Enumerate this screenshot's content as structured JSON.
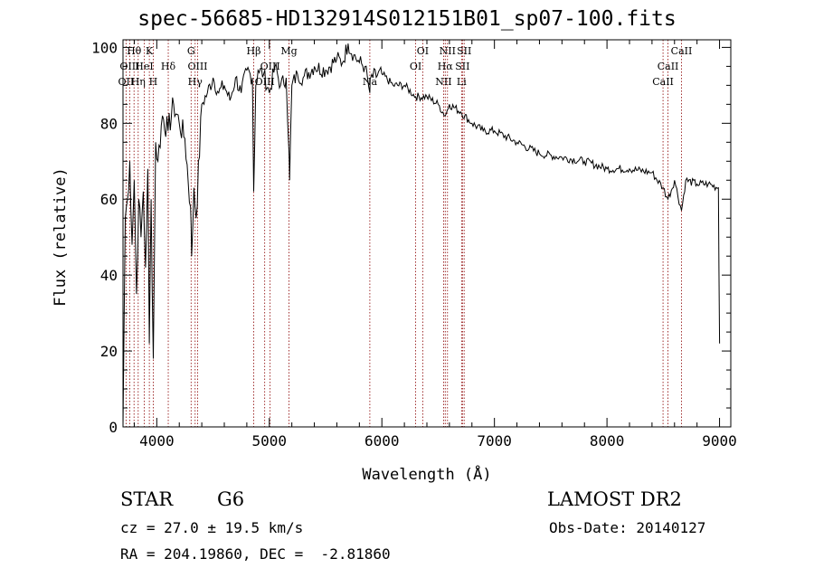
{
  "title": "spec-56685-HD132914S012151B01_sp07-100.fits",
  "info": {
    "class": "STAR",
    "subclass": "G6",
    "survey": "LAMOST DR2",
    "cz": "cz = 27.0 ± 19.5 km/s",
    "obs_date": "Obs-Date: 20140127",
    "radec": "RA = 204.19860, DEC =  -2.81860"
  },
  "chart_data": {
    "type": "line",
    "xlabel": "Wavelength (Å)",
    "ylabel": "Flux (relative)",
    "xlim": [
      3700,
      9100
    ],
    "ylim": [
      0,
      102
    ],
    "xticks": [
      4000,
      5000,
      6000,
      7000,
      8000,
      9000
    ],
    "yticks": [
      0,
      20,
      40,
      60,
      80,
      100
    ],
    "x_minor_step": 200,
    "y_minor_step": 5,
    "line_color": "#000000",
    "marker_color": "#8b0000",
    "spectral_lines": [
      {
        "label": "OII",
        "wavelength": 3727,
        "row": 2
      },
      {
        "label": "Hθ",
        "wavelength": 3798,
        "row": 0
      },
      {
        "label": "OIII",
        "wavelength": 3760,
        "row": 1
      },
      {
        "label": "Hη",
        "wavelength": 3835,
        "row": 2
      },
      {
        "label": "HeI",
        "wavelength": 3889,
        "row": 1
      },
      {
        "label": "K",
        "wavelength": 3934,
        "row": 0
      },
      {
        "label": "H",
        "wavelength": 3969,
        "row": 2
      },
      {
        "label": "Hδ",
        "wavelength": 4102,
        "row": 1
      },
      {
        "label": "G",
        "wavelength": 4305,
        "row": 0
      },
      {
        "label": "Hγ",
        "wavelength": 4341,
        "row": 2
      },
      {
        "label": "OIII",
        "wavelength": 4363,
        "row": 1
      },
      {
        "label": "Hβ",
        "wavelength": 4861,
        "row": 0
      },
      {
        "label": "OIII",
        "wavelength": 4959,
        "row": 2
      },
      {
        "label": "OIII",
        "wavelength": 5007,
        "row": 1
      },
      {
        "label": "Mg",
        "wavelength": 5175,
        "row": 0
      },
      {
        "label": "Na",
        "wavelength": 5893,
        "row": 2
      },
      {
        "label": "OI",
        "wavelength": 6300,
        "row": 1
      },
      {
        "label": "OI",
        "wavelength": 6363,
        "row": 0
      },
      {
        "label": "NII",
        "wavelength": 6548,
        "row": 2
      },
      {
        "label": "Hα",
        "wavelength": 6563,
        "row": 1
      },
      {
        "label": "NII",
        "wavelength": 6583,
        "row": 0
      },
      {
        "label": "Li",
        "wavelength": 6708,
        "row": 2
      },
      {
        "label": "SII",
        "wavelength": 6716,
        "row": 1
      },
      {
        "label": "SII",
        "wavelength": 6731,
        "row": 0
      },
      {
        "label": "CaII",
        "wavelength": 8498,
        "row": 2
      },
      {
        "label": "CaII",
        "wavelength": 8542,
        "row": 1
      },
      {
        "label": "CaII",
        "wavelength": 8662,
        "row": 0
      }
    ],
    "series": [
      {
        "x": [
          3700,
          3720,
          3740,
          3760,
          3780,
          3800,
          3820,
          3840,
          3860,
          3880,
          3900,
          3920,
          3934,
          3950,
          3969,
          3990,
          4010,
          4050,
          4100,
          4150,
          4200,
          4250,
          4300,
          4310,
          4330,
          4350,
          4400,
          4450,
          4500,
          4550,
          4600,
          4650,
          4700,
          4750,
          4800,
          4850,
          4861,
          4880,
          4900,
          4950,
          5000,
          5050,
          5100,
          5150,
          5175,
          5180,
          5200,
          5250,
          5300,
          5400,
          5500,
          5600,
          5650,
          5700,
          5750,
          5800,
          5850,
          5893,
          5900,
          6000,
          6100,
          6200,
          6300,
          6400,
          6500,
          6563,
          6600,
          6700,
          6800,
          6900,
          7000,
          7200,
          7400,
          7600,
          7800,
          8000,
          8200,
          8400,
          8498,
          8542,
          8600,
          8662,
          8700,
          8800,
          8900,
          8990,
          9000
        ],
        "y": [
          0,
          55,
          60,
          70,
          48,
          65,
          35,
          60,
          50,
          62,
          42,
          68,
          22,
          60,
          18,
          75,
          70,
          82,
          78,
          85,
          80,
          76,
          58,
          45,
          63,
          55,
          85,
          88,
          92,
          88,
          90,
          86,
          92,
          88,
          94,
          92,
          62,
          90,
          94,
          93,
          88,
          95,
          90,
          92,
          72,
          65,
          90,
          93,
          92,
          95,
          94,
          97,
          96,
          101,
          98,
          96,
          95,
          88,
          92,
          93,
          90,
          90,
          87,
          87,
          85,
          82,
          85,
          83,
          80,
          78,
          78,
          75,
          72,
          71,
          70,
          68,
          68,
          67,
          63,
          60,
          65,
          57,
          65,
          64,
          64,
          63,
          22
        ]
      }
    ]
  }
}
